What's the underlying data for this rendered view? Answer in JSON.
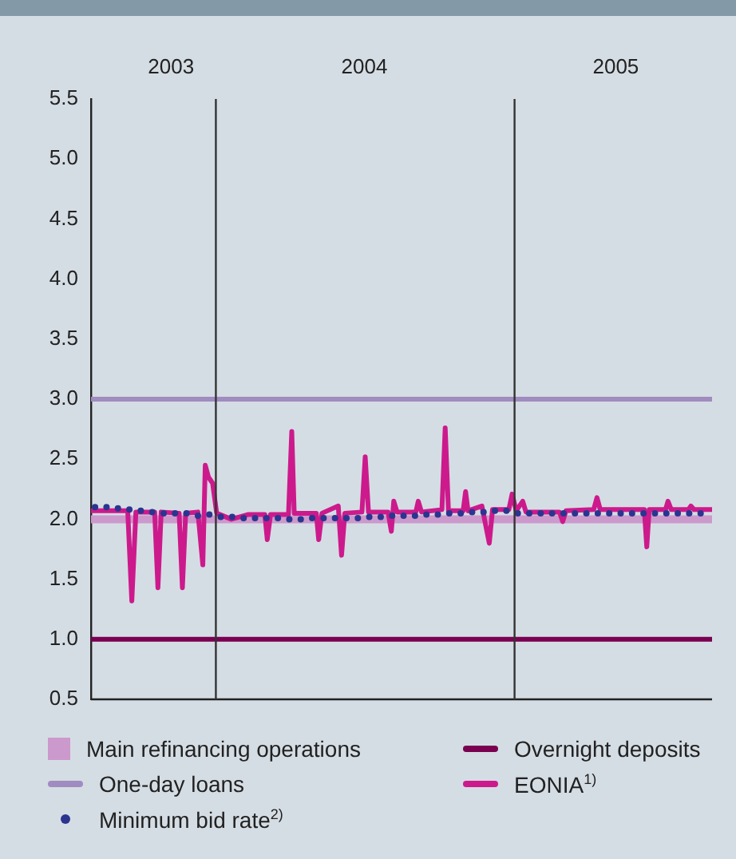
{
  "chart_data": {
    "type": "line",
    "xlim": [
      "2003-08-01",
      "2005-08-31"
    ],
    "xticks": [
      {
        "value": "2003-11-07",
        "label": "2003"
      },
      {
        "value": "2004-07-01",
        "label": "2004"
      },
      {
        "value": "2005-05-05",
        "label": "2005"
      }
    ],
    "ylim": [
      0.5,
      5.5
    ],
    "yticks": [
      0.5,
      {
        "value": 1,
        "label": "1.0"
      },
      1.5,
      {
        "value": 2,
        "label": "2.0"
      },
      2.5,
      {
        "value": 3,
        "label": "3.0"
      },
      3.5,
      {
        "value": 4,
        "label": "4.0"
      },
      4.5,
      {
        "value": 5,
        "label": "5.0"
      },
      5.5
    ],
    "grid": false,
    "legend": "bottom",
    "ref_lines": [
      {
        "axis": "x",
        "value": "2004-01-01",
        "color": "#333333"
      },
      {
        "axis": "x",
        "value": "2005-01-01",
        "color": "#333333"
      }
    ],
    "series": [
      {
        "name": "Main refinancing operations",
        "type": "line",
        "color": "#cc99cc",
        "x": [
          "2003-08-01",
          "2005-08-31"
        ],
        "values": [
          2.0,
          2.0
        ]
      },
      {
        "name": "One-day loans",
        "type": "line",
        "color": "#a08cc0",
        "x": [
          "2003-08-01",
          "2005-08-31"
        ],
        "values": [
          3.0,
          3.0
        ]
      },
      {
        "name": "Minimum bid rate$^{2)}$",
        "type": "scatter",
        "color": "#2a3590",
        "x": [
          "2003-08-06",
          "2003-08-20",
          "2003-09-03",
          "2003-09-17",
          "2003-10-01",
          "2003-10-15",
          "2003-10-29",
          "2003-11-12",
          "2003-11-26",
          "2003-12-10",
          "2003-12-24",
          "2004-01-07",
          "2004-01-21",
          "2004-02-04",
          "2004-02-18",
          "2004-03-03",
          "2004-03-17",
          "2004-03-31",
          "2004-04-14",
          "2004-04-28",
          "2004-05-12",
          "2004-05-26",
          "2004-06-09",
          "2004-06-23",
          "2004-07-07",
          "2004-07-21",
          "2004-08-04",
          "2004-08-18",
          "2004-09-01",
          "2004-09-15",
          "2004-09-29",
          "2004-10-13",
          "2004-10-27",
          "2004-11-10",
          "2004-11-24",
          "2004-12-08",
          "2004-12-22",
          "2005-01-05",
          "2005-01-19",
          "2005-02-02",
          "2005-02-16",
          "2005-03-02",
          "2005-03-16",
          "2005-03-30",
          "2005-04-13",
          "2005-04-27",
          "2005-05-11",
          "2005-05-25",
          "2005-06-08",
          "2005-06-22",
          "2005-07-06",
          "2005-07-20",
          "2005-08-03",
          "2005-08-17"
        ],
        "values": [
          2.1,
          2.1,
          2.09,
          2.08,
          2.07,
          2.06,
          2.05,
          2.05,
          2.05,
          2.03,
          2.04,
          2.02,
          2.02,
          2.01,
          2.01,
          2.01,
          2.01,
          2.0,
          2.0,
          2.01,
          2.01,
          2.01,
          2.01,
          2.01,
          2.02,
          2.02,
          2.03,
          2.03,
          2.03,
          2.04,
          2.04,
          2.05,
          2.05,
          2.06,
          2.06,
          2.07,
          2.07,
          2.05,
          2.05,
          2.05,
          2.05,
          2.05,
          2.05,
          2.05,
          2.05,
          2.05,
          2.05,
          2.05,
          2.05,
          2.05,
          2.05,
          2.05,
          2.05,
          2.05
        ]
      },
      {
        "name": "Overnight deposits",
        "type": "line",
        "color": "#7a0050",
        "x": [
          "2003-08-01",
          "2005-08-31"
        ],
        "values": [
          1.0,
          1.0
        ]
      },
      {
        "name": "EONIA$^{1)}$",
        "color": "#cc1a8c",
        "x": [
          "2003-08-01",
          "2003-09-15",
          "2003-09-20",
          "2003-09-25",
          "2003-10-18",
          "2003-10-22",
          "2003-10-26",
          "2003-11-17",
          "2003-11-21",
          "2003-11-25",
          "2003-12-10",
          "2003-12-16",
          "2003-12-19",
          "2003-12-23",
          "2003-12-28",
          "2004-01-02",
          "2004-01-20",
          "2004-02-10",
          "2004-03-01",
          "2004-03-04",
          "2004-03-08",
          "2004-03-30",
          "2004-04-03",
          "2004-04-06",
          "2004-05-03",
          "2004-05-06",
          "2004-05-10",
          "2004-05-30",
          "2004-06-03",
          "2004-06-07",
          "2004-06-28",
          "2004-07-02",
          "2004-07-06",
          "2004-07-30",
          "2004-08-03",
          "2004-08-06",
          "2004-08-10",
          "2004-09-02",
          "2004-09-05",
          "2004-09-09",
          "2004-10-04",
          "2004-10-08",
          "2004-10-12",
          "2004-10-30",
          "2004-11-02",
          "2004-11-05",
          "2004-11-22",
          "2004-12-01",
          "2004-12-05",
          "2004-12-25",
          "2004-12-29",
          "2005-01-03",
          "2005-01-11",
          "2005-01-15",
          "2005-02-25",
          "2005-03-01",
          "2005-03-05",
          "2005-04-08",
          "2005-04-12",
          "2005-04-16",
          "2005-06-09",
          "2005-06-12",
          "2005-06-15",
          "2005-07-05",
          "2005-07-08",
          "2005-07-12",
          "2005-08-02",
          "2005-08-05",
          "2005-08-09",
          "2005-08-31"
        ],
        "values": [
          2.07,
          2.07,
          1.32,
          2.06,
          2.06,
          1.43,
          2.06,
          2.05,
          1.43,
          2.05,
          2.06,
          1.62,
          2.45,
          2.35,
          2.3,
          2.05,
          2.0,
          2.04,
          2.04,
          1.83,
          2.04,
          2.04,
          2.73,
          2.05,
          2.05,
          1.83,
          2.05,
          2.11,
          1.7,
          2.05,
          2.06,
          2.52,
          2.06,
          2.06,
          1.9,
          2.15,
          2.06,
          2.06,
          2.15,
          2.06,
          2.08,
          2.76,
          2.07,
          2.07,
          2.23,
          2.07,
          2.11,
          1.8,
          2.08,
          2.08,
          2.21,
          2.07,
          2.15,
          2.06,
          2.06,
          1.98,
          2.07,
          2.08,
          2.18,
          2.08,
          2.08,
          1.77,
          2.08,
          2.08,
          2.15,
          2.08,
          2.08,
          2.11,
          2.08,
          2.08
        ]
      }
    ]
  }
}
